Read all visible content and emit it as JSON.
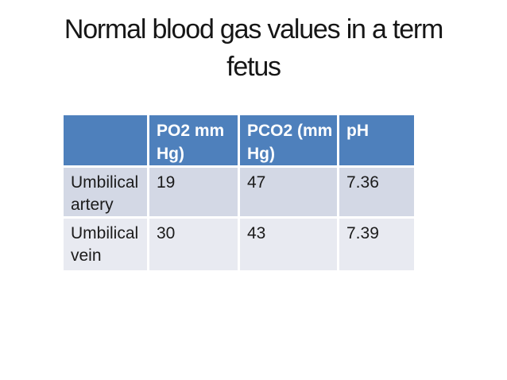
{
  "title": {
    "line1": "Normal blood gas values in a term",
    "line2": "fetus"
  },
  "table": {
    "headers": [
      "",
      "PO2 mm Hg)",
      "PCO2 (mm Hg)",
      "pH"
    ],
    "rows": [
      {
        "label": "Umbilical artery",
        "po2": "19",
        "pco2": "47",
        "ph": "7.36"
      },
      {
        "label": "Umbilical vein",
        "po2": "30",
        "pco2": "43",
        "ph": "7.39"
      }
    ]
  },
  "chart_data": {
    "type": "table",
    "title": "Normal blood gas values in a term fetus",
    "columns": [
      "",
      "PO2 mm Hg)",
      "PCO2 (mm Hg)",
      "pH"
    ],
    "rows": [
      [
        "Umbilical artery",
        19,
        47,
        7.36
      ],
      [
        "Umbilical vein",
        30,
        43,
        7.39
      ]
    ]
  },
  "colors": {
    "header_bg": "#4E80BC",
    "row_odd_bg": "#D3D8E5",
    "row_even_bg": "#E8EAF1",
    "header_text": "#FFFFFF",
    "body_text": "#1B1B1B",
    "title_text": "#161616",
    "grid_lines": "#FFFFFF"
  }
}
